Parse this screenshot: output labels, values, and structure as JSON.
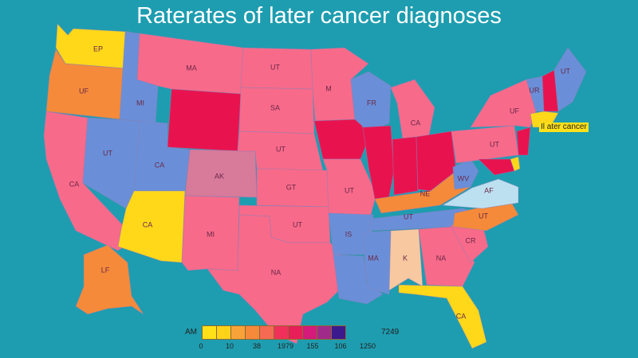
{
  "title": "Raterates of later cancer diagnoses",
  "callout": "Il ater cancer",
  "legend": {
    "start_label": "AM",
    "end_label": "7249",
    "colors": [
      "#ffe11a",
      "#ffd21a",
      "#f8a33a",
      "#f58a3a",
      "#f46a52",
      "#f0305a",
      "#e81e58",
      "#d41a7a",
      "#a02a8a",
      "#3b1a8e"
    ],
    "ticks": [
      "0",
      "10",
      "38",
      "1979",
      "155",
      "106",
      "1250"
    ]
  },
  "states": {
    "WA": {
      "label": "EP",
      "color": "#ffd81a"
    },
    "OR": {
      "label": "UF",
      "color": "#f58a3a"
    },
    "CA": {
      "label": "CA",
      "color": "#f86a8a"
    },
    "NV": {
      "label": "UT",
      "color": "#6a8fd8"
    },
    "ID": {
      "label": "MI",
      "color": "#6a8fd8"
    },
    "MT": {
      "label": "MA",
      "color": "#f86a8a"
    },
    "WY": {
      "label": "",
      "color": "#e8134e"
    },
    "UT": {
      "label": "CA",
      "color": "#6a8fd8"
    },
    "AZ": {
      "label": "CA",
      "color": "#ffd81a"
    },
    "CO": {
      "label": "AK",
      "color": "#d87a9a"
    },
    "NM": {
      "label": "MI",
      "color": "#f86a8a"
    },
    "ND": {
      "label": "UT",
      "color": "#f86a8a"
    },
    "SD": {
      "label": "SA",
      "color": "#f86a8a"
    },
    "NE": {
      "label": "UT",
      "color": "#f86a8a"
    },
    "KS": {
      "label": "GT",
      "color": "#f86a8a"
    },
    "OK": {
      "label": "UT",
      "color": "#f86a8a"
    },
    "TX": {
      "label": "NA",
      "color": "#f86a8a"
    },
    "MN": {
      "label": "M",
      "color": "#f86a8a"
    },
    "IA": {
      "label": "",
      "color": "#e8134e"
    },
    "MO": {
      "label": "UT",
      "color": "#f86a8a"
    },
    "AR": {
      "label": "IS",
      "color": "#6a8fd8"
    },
    "LA": {
      "label": "",
      "color": "#6a8fd8"
    },
    "WI": {
      "label": "FR",
      "color": "#6a8fd8"
    },
    "IL": {
      "label": "",
      "color": "#e8134e"
    },
    "MI": {
      "label": "CA",
      "color": "#f86a8a"
    },
    "IN": {
      "label": "",
      "color": "#e8134e"
    },
    "OH": {
      "label": "",
      "color": "#e8134e"
    },
    "KY": {
      "label": "NE",
      "color": "#f58a3a"
    },
    "TN": {
      "label": "UT",
      "color": "#6a8fd8"
    },
    "MS": {
      "label": "MA",
      "color": "#6a8fd8"
    },
    "AL": {
      "label": "K",
      "color": "#f8c8a0"
    },
    "GA": {
      "label": "NA",
      "color": "#f86a8a"
    },
    "FL": {
      "label": "CA",
      "color": "#ffd81a"
    },
    "SC": {
      "label": "CR",
      "color": "#f86a8a"
    },
    "NC": {
      "label": "UT",
      "color": "#f58a3a"
    },
    "VA": {
      "label": "AF",
      "color": "#bde0f0"
    },
    "WV": {
      "label": "WV",
      "color": "#6a8fd8"
    },
    "PA": {
      "label": "UT",
      "color": "#f86a8a"
    },
    "NY": {
      "label": "UF",
      "color": "#f86a8a"
    },
    "MD": {
      "label": "",
      "color": "#e8134e"
    },
    "NJ": {
      "label": "",
      "color": "#e8134e"
    },
    "DE": {
      "label": "",
      "color": "#ffd81a"
    },
    "VT": {
      "label": "UR",
      "color": "#6a8fd8"
    },
    "NH": {
      "label": "",
      "color": "#e8134e"
    },
    "ME": {
      "label": "UT",
      "color": "#6a8fd8"
    },
    "CT": {
      "label": "",
      "color": "#ffd81a"
    },
    "AK": {
      "label": "LF",
      "color": "#f58a3a"
    }
  }
}
